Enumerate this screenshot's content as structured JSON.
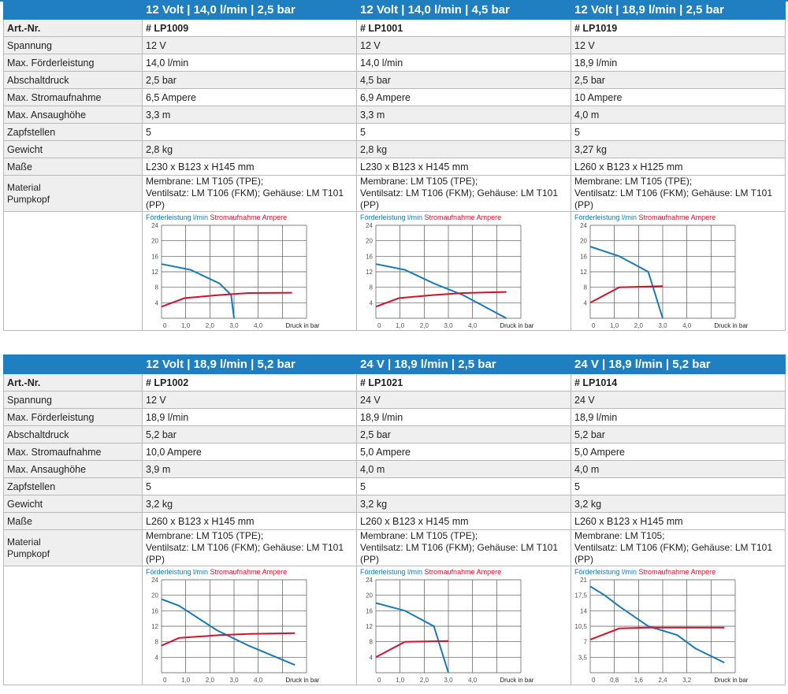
{
  "row_labels": {
    "art": "Art.-Nr.",
    "spannung": "Spannung",
    "foerder": "Max. Förderleistung",
    "abschalt": "Abschaltdruck",
    "strom": "Max. Stromaufnahme",
    "ansaug": "Max. Ansaughöhe",
    "zapf": "Zapfstellen",
    "gewicht": "Gewicht",
    "masse": "Maße",
    "material_1": "Material",
    "material_2": "Pumpkopf"
  },
  "chart_legend": {
    "flow": "Förderleistung l/min",
    "amp": "Stromaufnahme Ampere",
    "x_axis": "Druck in bar"
  },
  "colors": {
    "header": "#1f7fc0",
    "flow_line": "#1a7ab5",
    "amp_line": "#d4102a",
    "zebra": "#efefef"
  },
  "blocks": [
    {
      "products": [
        {
          "header": "12 Volt | 14,0 l/min | 2,5 bar",
          "art": "# LP1009",
          "spannung": "12 V",
          "foerder": "14,0 l/min",
          "abschalt": "2,5 bar",
          "strom": "6,5 Ampere",
          "ansaug": "3,3 m",
          "zapf": "5",
          "gewicht": "2,8 kg",
          "masse": "L230 x B123 x H145 mm",
          "material_1": "Membrane: LM T105 (TPE);",
          "material_2": "Ventilsatz: LM T106 (FKM); Gehäuse: LM T101 (PP)"
        },
        {
          "header": "12 Volt | 14,0 l/min | 4,5 bar",
          "art": "# LP1001",
          "spannung": "12 V",
          "foerder": "14,0 l/min",
          "abschalt": "4,5 bar",
          "strom": "6,9 Ampere",
          "ansaug": "3,3 m",
          "zapf": "5",
          "gewicht": "2,8 kg",
          "masse": "L230 x B123 x H145 mm",
          "material_1": "Membrane: LM T105 (TPE);",
          "material_2": "Ventilsatz: LM T106 (FKM); Gehäuse: LM T101 (PP)"
        },
        {
          "header": "12 Volt | 18,9 l/min | 2,5 bar",
          "art": "# LP1019",
          "spannung": "12 V",
          "foerder": "18,9 l/min",
          "abschalt": "2,5 bar",
          "strom": "10 Ampere",
          "ansaug": "4,0 m",
          "zapf": "5",
          "gewicht": "3,27 kg",
          "masse": "L260 x B123 x H125 mm",
          "material_1": "Membrane: LM T105 (TPE);",
          "material_2": "Ventilsatz: LM T106 (FKM); Gehäuse: LM T101 (PP)"
        }
      ]
    },
    {
      "products": [
        {
          "header": "12 Volt | 18,9 l/min | 5,2 bar",
          "art": "# LP1002",
          "spannung": "12 V",
          "foerder": "18,9 l/min",
          "abschalt": "5,2 bar",
          "strom": "10,0 Ampere",
          "ansaug": "3,9 m",
          "zapf": "5",
          "gewicht": "3,2 kg",
          "masse": "L260 x B123 x H145 mm",
          "material_1": "Membrane: LM T105 (TPE);",
          "material_2": "Ventilsatz: LM T106 (FKM); Gehäuse: LM T101 (PP)"
        },
        {
          "header": "24 V | 18,9 l/min | 2,5 bar",
          "art": "# LP1021",
          "spannung": "24 V",
          "foerder": "18,9 l/min",
          "abschalt": "2,5 bar",
          "strom": "5,0 Ampere",
          "ansaug": "4,0 m",
          "zapf": "5",
          "gewicht": "3,2 kg",
          "masse": "L260 x B123 x H145 mm",
          "material_1": "Membrane: LM T105 (TPE);",
          "material_2": "Ventilsatz: LM T106 (FKM); Gehäuse: LM T101 (PP)"
        },
        {
          "header": "24 V | 18,9 l/min | 5,2 bar",
          "art": "# LP1014",
          "spannung": "24 V",
          "foerder": "18,9 l/min",
          "abschalt": "5,2 bar",
          "strom": "5,0 Ampere",
          "ansaug": "4,0 m",
          "zapf": "5",
          "gewicht": "3,2 kg",
          "masse": "L260 x B123 x H145 mm",
          "material_1": "Membrane: LM T105;",
          "material_2": "Ventilsatz: LM T106 (FKM); Gehäuse: LM T101 (PP)"
        }
      ]
    }
  ],
  "chart_data": [
    {
      "type": "line",
      "xlabel": "Druck in bar",
      "x_ticks": [
        "0",
        "1,0",
        "2,0",
        "3,0",
        "4,0"
      ],
      "xlim": [
        0,
        5
      ],
      "y_ticks": [
        "4",
        "8",
        "12",
        "16",
        "20",
        "24"
      ],
      "ylim": [
        0,
        24
      ],
      "series": [
        {
          "name": "Förderleistung l/min",
          "x": [
            0,
            1.0,
            2.0,
            2.4,
            2.5
          ],
          "y": [
            14,
            12.5,
            9,
            6,
            0
          ]
        },
        {
          "name": "Stromaufnahme Ampere",
          "x": [
            0,
            0.8,
            2.0,
            3.0,
            4.5
          ],
          "y": [
            3,
            5.2,
            6,
            6.5,
            6.6
          ]
        }
      ]
    },
    {
      "type": "line",
      "xlabel": "Druck in bar",
      "x_ticks": [
        "0",
        "1,0",
        "2,0",
        "3,0",
        "4,0"
      ],
      "xlim": [
        0,
        5
      ],
      "y_ticks": [
        "4",
        "8",
        "12",
        "16",
        "20",
        "24"
      ],
      "ylim": [
        0,
        24
      ],
      "series": [
        {
          "name": "Förderleistung l/min",
          "x": [
            0,
            1.0,
            2.0,
            3.0,
            4.5
          ],
          "y": [
            14,
            12.5,
            9,
            6,
            0
          ]
        },
        {
          "name": "Stromaufnahme Ampere",
          "x": [
            0,
            0.8,
            2.0,
            3.0,
            4.5
          ],
          "y": [
            3,
            5.2,
            6,
            6.5,
            6.8
          ]
        }
      ]
    },
    {
      "type": "line",
      "xlabel": "Druck in bar",
      "x_ticks": [
        "0",
        "1,0",
        "2,0",
        "3,0",
        "4,0"
      ],
      "xlim": [
        0,
        5
      ],
      "y_ticks": [
        "4",
        "8",
        "12",
        "16",
        "20",
        "24"
      ],
      "ylim": [
        0,
        24
      ],
      "series": [
        {
          "name": "Förderleistung l/min",
          "x": [
            0,
            1.0,
            2.0,
            2.5
          ],
          "y": [
            18.5,
            16,
            12,
            0
          ]
        },
        {
          "name": "Stromaufnahme Ampere",
          "x": [
            0,
            1.0,
            2.5
          ],
          "y": [
            4,
            8,
            8.3
          ]
        }
      ]
    },
    {
      "type": "line",
      "xlabel": "Druck in bar",
      "x_ticks": [
        "0",
        "1,0",
        "2,0",
        "3,0",
        "4,0"
      ],
      "xlim": [
        0,
        5
      ],
      "y_ticks": [
        "4",
        "8",
        "12",
        "16",
        "20",
        "24"
      ],
      "ylim": [
        0,
        24
      ],
      "series": [
        {
          "name": "Förderleistung l/min",
          "x": [
            0,
            0.6,
            1.9,
            3.0,
            4.6
          ],
          "y": [
            19,
            17.3,
            11,
            7,
            2
          ]
        },
        {
          "name": "Stromaufnahme Ampere",
          "x": [
            0,
            0.6,
            2.0,
            3.0,
            4.6
          ],
          "y": [
            7,
            9,
            9.7,
            10,
            10.2
          ]
        }
      ]
    },
    {
      "type": "line",
      "xlabel": "Druck in bar",
      "x_ticks": [
        "0",
        "1,0",
        "2,0",
        "3,0",
        "4,0"
      ],
      "xlim": [
        0,
        5
      ],
      "y_ticks": [
        "4",
        "8",
        "12",
        "16",
        "20",
        "24"
      ],
      "ylim": [
        0,
        24
      ],
      "series": [
        {
          "name": "Förderleistung l/min",
          "x": [
            0,
            1.0,
            2.0,
            2.5
          ],
          "y": [
            18,
            16,
            12,
            0
          ]
        },
        {
          "name": "Stromaufnahme Ampere",
          "x": [
            0,
            1.0,
            2.5
          ],
          "y": [
            4,
            8,
            8.2
          ]
        }
      ]
    },
    {
      "type": "line",
      "xlabel": "Druck in bar",
      "x_ticks": [
        "0",
        "0,8",
        "1,6",
        "2,4",
        "3,2"
      ],
      "xlim": [
        0,
        4
      ],
      "y_ticks": [
        "3,5",
        "7",
        "10,5",
        "14",
        "17,5",
        "21"
      ],
      "ylim": [
        0,
        21
      ],
      "series": [
        {
          "name": "Förderleistung l/min",
          "x": [
            0,
            0.4,
            0.8,
            1.6,
            2.4,
            2.9,
            3.7
          ],
          "y": [
            19.5,
            17.5,
            15,
            10.5,
            8.5,
            5.5,
            2.3
          ]
        },
        {
          "name": "Stromaufnahme Ampere",
          "x": [
            0,
            0.8,
            1.6,
            2.4,
            3.2,
            3.7
          ],
          "y": [
            7.5,
            10,
            10.2,
            10.2,
            10.2,
            10.2
          ]
        }
      ]
    }
  ]
}
